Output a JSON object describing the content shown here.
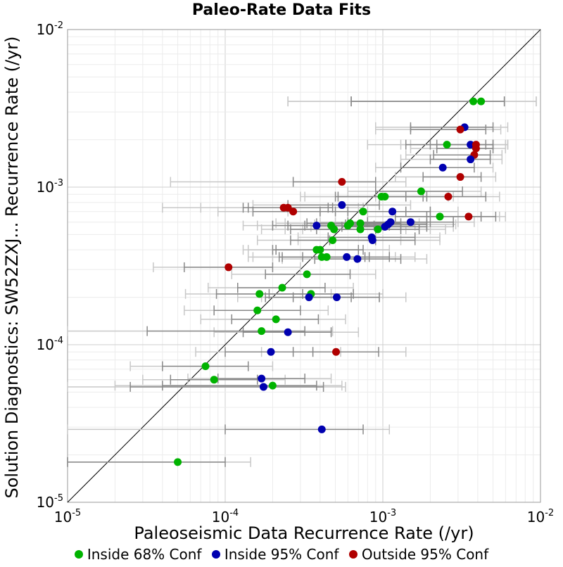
{
  "chart_data": {
    "type": "scatter",
    "title": "Paleo-Rate Data Fits",
    "xlabel": "Paleoseismic Data Recurrence Rate (/yr)",
    "ylabel": "Solution Diagnostics: SW52ZXJ... Recurrence Rate (/yr)",
    "xscale": "log",
    "yscale": "log",
    "xlim": [
      1e-05,
      0.01
    ],
    "ylim": [
      1e-05,
      0.01
    ],
    "x_ticks": [
      "10^-5",
      "10^-4",
      "10^-3",
      "10^-2"
    ],
    "y_ticks": [
      "10^-5",
      "10^-4",
      "10^-3",
      "10^-2"
    ],
    "grid": true,
    "reference_line": "y = x",
    "legend_position": "bottom",
    "legend": [
      {
        "label": "Inside 68% Conf",
        "color": "#00b300"
      },
      {
        "label": "Inside 95% Conf",
        "color": "#0000b0"
      },
      {
        "label": "Outside 95% Conf",
        "color": "#b00000"
      }
    ],
    "error_bar_colors": {
      "68": "#888888",
      "95": "#c8c8c8"
    },
    "points": [
      {
        "cat": 0,
        "x": 0.00375,
        "y": 0.0035,
        "e68": [
          0.00063,
          0.0059
        ],
        "e95": [
          0.00025,
          0.0094
        ]
      },
      {
        "cat": 0,
        "x": 0.0042,
        "y": 0.0035,
        "e68": [
          0.00063,
          0.0059
        ],
        "e95": [
          0.00025,
          0.0094
        ]
      },
      {
        "cat": 1,
        "x": 0.0033,
        "y": 0.0024,
        "e68": [
          0.0015,
          0.005
        ],
        "e95": [
          0.0009,
          0.0062
        ]
      },
      {
        "cat": 2,
        "x": 0.0031,
        "y": 0.00232,
        "e68": [
          0.0015,
          0.0045
        ],
        "e95": [
          0.0009,
          0.0056
        ]
      },
      {
        "cat": 0,
        "x": 0.00255,
        "y": 0.00186,
        "e68": [
          0.0014,
          0.0045
        ],
        "e95": [
          0.0008,
          0.0062
        ]
      },
      {
        "cat": 1,
        "x": 0.0036,
        "y": 0.00186,
        "e68": [
          0.002,
          0.005
        ],
        "e95": [
          0.0013,
          0.0062
        ]
      },
      {
        "cat": 2,
        "x": 0.0039,
        "y": 0.00186,
        "e68": [
          0.0022,
          0.005
        ],
        "e95": [
          0.0015,
          0.006
        ]
      },
      {
        "cat": 2,
        "x": 0.0039,
        "y": 0.00176,
        "e68": [
          0.0022,
          0.005
        ],
        "e95": [
          0.0015,
          0.006
        ]
      },
      {
        "cat": 2,
        "x": 0.0038,
        "y": 0.0016,
        "e68": [
          0.0021,
          0.0048
        ],
        "e95": [
          0.0014,
          0.0057
        ]
      },
      {
        "cat": 1,
        "x": 0.0036,
        "y": 0.0015,
        "e68": [
          0.002,
          0.0048
        ],
        "e95": [
          0.0013,
          0.0057
        ]
      },
      {
        "cat": 1,
        "x": 0.0024,
        "y": 0.00133,
        "e68": [
          0.0013,
          0.0038
        ],
        "e95": [
          0.0009,
          0.005
        ]
      },
      {
        "cat": 2,
        "x": 0.0031,
        "y": 0.00116,
        "e68": [
          0.0018,
          0.0042
        ],
        "e95": [
          0.0012,
          0.0052
        ]
      },
      {
        "cat": 2,
        "x": 0.00055,
        "y": 0.00108,
        "e68": [
          0.00027,
          0.0009
        ],
        "e95": [
          4.5e-05,
          0.0014
        ]
      },
      {
        "cat": 0,
        "x": 0.00175,
        "y": 0.00094,
        "e68": [
          0.0009,
          0.0032
        ],
        "e95": [
          0.0006,
          0.0042
        ]
      },
      {
        "cat": 0,
        "x": 0.00098,
        "y": 0.00087,
        "e68": [
          0.0005,
          0.0018
        ],
        "e95": [
          0.0003,
          0.0026
        ]
      },
      {
        "cat": 0,
        "x": 0.00103,
        "y": 0.00087,
        "e68": [
          0.00052,
          0.0019
        ],
        "e95": [
          0.00032,
          0.0028
        ]
      },
      {
        "cat": 2,
        "x": 0.0026,
        "y": 0.00087,
        "e68": [
          0.0014,
          0.0045
        ],
        "e95": [
          0.0009,
          0.0055
        ]
      },
      {
        "cat": 1,
        "x": 0.00055,
        "y": 0.00077,
        "e68": [
          0.00025,
          0.00095
        ],
        "e95": [
          0.00015,
          0.0015
        ]
      },
      {
        "cat": 2,
        "x": 0.000235,
        "y": 0.00074,
        "e68": [
          0.00013,
          0.00045
        ],
        "e95": [
          4e-05,
          0.0007
        ]
      },
      {
        "cat": 2,
        "x": 0.00025,
        "y": 0.00074,
        "e68": [
          0.00014,
          0.00048
        ],
        "e95": [
          7e-05,
          0.00075
        ]
      },
      {
        "cat": 2,
        "x": 0.00027,
        "y": 0.0007,
        "e68": [
          0.00015,
          0.0005
        ],
        "e95": [
          9e-05,
          0.0008
        ]
      },
      {
        "cat": 0,
        "x": 0.00075,
        "y": 0.0007,
        "e68": [
          0.0004,
          0.0014
        ],
        "e95": [
          0.00025,
          0.002
        ]
      },
      {
        "cat": 1,
        "x": 0.00115,
        "y": 0.0007,
        "e68": [
          0.0006,
          0.002
        ],
        "e95": [
          0.0004,
          0.003
        ]
      },
      {
        "cat": 0,
        "x": 0.0023,
        "y": 0.00065,
        "e68": [
          0.0012,
          0.0042
        ],
        "e95": [
          0.0008,
          0.0055
        ]
      },
      {
        "cat": 2,
        "x": 0.0035,
        "y": 0.00065,
        "e68": [
          0.0019,
          0.0052
        ],
        "e95": [
          0.0012,
          0.006
        ]
      },
      {
        "cat": 1,
        "x": 0.0015,
        "y": 0.0006,
        "e68": [
          0.0008,
          0.0028
        ],
        "e95": [
          0.0005,
          0.0038
        ]
      },
      {
        "cat": 1,
        "x": 0.00112,
        "y": 0.0006,
        "e68": [
          0.0006,
          0.002
        ],
        "e95": [
          0.0004,
          0.003
        ]
      },
      {
        "cat": 0,
        "x": 0.00072,
        "y": 0.00059,
        "e68": [
          0.00038,
          0.0013
        ],
        "e95": [
          0.00024,
          0.0019
        ]
      },
      {
        "cat": 0,
        "x": 0.00062,
        "y": 0.00059,
        "e68": [
          0.00033,
          0.0011
        ],
        "e95": [
          0.00021,
          0.0017
        ]
      },
      {
        "cat": 1,
        "x": 0.00108,
        "y": 0.00058,
        "e68": [
          0.00058,
          0.0019
        ],
        "e95": [
          0.00037,
          0.0029
        ]
      },
      {
        "cat": 1,
        "x": 0.00038,
        "y": 0.00057,
        "e68": [
          0.0002,
          0.0007
        ],
        "e95": [
          0.00013,
          0.0011
        ]
      },
      {
        "cat": 0,
        "x": 0.00047,
        "y": 0.00057,
        "e68": [
          0.00025,
          0.00088
        ],
        "e95": [
          0.00016,
          0.0013
        ]
      },
      {
        "cat": 0,
        "x": 0.0006,
        "y": 0.00057,
        "e68": [
          0.00032,
          0.0011
        ],
        "e95": [
          0.0002,
          0.0016
        ]
      },
      {
        "cat": 1,
        "x": 0.00103,
        "y": 0.00056,
        "e68": [
          0.00055,
          0.0019
        ],
        "e95": [
          0.00035,
          0.0028
        ]
      },
      {
        "cat": 0,
        "x": 0.00049,
        "y": 0.00054,
        "e68": [
          0.00026,
          0.0009
        ],
        "e95": [
          0.00017,
          0.0014
        ]
      },
      {
        "cat": 0,
        "x": 0.00072,
        "y": 0.00054,
        "e68": [
          0.00038,
          0.0013
        ],
        "e95": [
          0.00024,
          0.002
        ]
      },
      {
        "cat": 0,
        "x": 0.00093,
        "y": 0.00054,
        "e68": [
          0.0005,
          0.0017
        ],
        "e95": [
          0.00031,
          0.0025
        ]
      },
      {
        "cat": 1,
        "x": 0.00085,
        "y": 0.00048,
        "e68": [
          0.00045,
          0.0016
        ],
        "e95": [
          0.00029,
          0.0023
        ]
      },
      {
        "cat": 0,
        "x": 0.00048,
        "y": 0.00046,
        "e68": [
          0.00026,
          0.0009
        ],
        "e95": [
          0.00016,
          0.0013
        ]
      },
      {
        "cat": 1,
        "x": 0.00086,
        "y": 0.00046,
        "e68": [
          0.00046,
          0.0016
        ],
        "e95": [
          0.00029,
          0.0023
        ]
      },
      {
        "cat": 0,
        "x": 0.00038,
        "y": 0.0004,
        "e68": [
          0.0002,
          0.0007
        ],
        "e95": [
          0.00013,
          0.0011
        ]
      },
      {
        "cat": 0,
        "x": 0.0004,
        "y": 0.0004,
        "e68": [
          0.00021,
          0.00075
        ],
        "e95": [
          0.00014,
          0.0011
        ]
      },
      {
        "cat": 0,
        "x": 0.00041,
        "y": 0.00036,
        "e68": [
          0.00022,
          0.00077
        ],
        "e95": [
          0.00014,
          0.0011
        ]
      },
      {
        "cat": 0,
        "x": 0.00044,
        "y": 0.00036,
        "e68": [
          0.00023,
          0.00082
        ],
        "e95": [
          0.00015,
          0.0012
        ]
      },
      {
        "cat": 1,
        "x": 0.00059,
        "y": 0.00036,
        "e68": [
          0.00031,
          0.0011
        ],
        "e95": [
          0.0002,
          0.0016
        ]
      },
      {
        "cat": 1,
        "x": 0.00069,
        "y": 0.00035,
        "e68": [
          0.00037,
          0.0013
        ],
        "e95": [
          0.00023,
          0.0019
        ]
      },
      {
        "cat": 2,
        "x": 0.000105,
        "y": 0.00031,
        "e68": [
          5.5e-05,
          0.0002
        ],
        "e95": [
          3.5e-05,
          0.0003
        ]
      },
      {
        "cat": 0,
        "x": 0.00033,
        "y": 0.00028,
        "e68": [
          0.00018,
          0.00062
        ],
        "e95": [
          0.00011,
          0.0009
        ]
      },
      {
        "cat": 0,
        "x": 0.00023,
        "y": 0.00023,
        "e68": [
          0.00012,
          0.00043
        ],
        "e95": [
          7.8e-05,
          0.00065
        ]
      },
      {
        "cat": 0,
        "x": 0.000165,
        "y": 0.00021,
        "e68": [
          8.8e-05,
          0.00031
        ],
        "e95": [
          5.6e-05,
          0.00047
        ]
      },
      {
        "cat": 0,
        "x": 0.00035,
        "y": 0.00021,
        "e68": [
          0.00019,
          0.00065
        ],
        "e95": [
          0.00012,
          0.001
        ]
      },
      {
        "cat": 1,
        "x": 0.00034,
        "y": 0.0002,
        "e68": [
          0.00018,
          0.00063
        ],
        "e95": [
          0.00012,
          0.00095
        ]
      },
      {
        "cat": 1,
        "x": 0.00051,
        "y": 0.0002,
        "e68": [
          0.00027,
          0.00095
        ],
        "e95": [
          0.00017,
          0.0014
        ]
      },
      {
        "cat": 0,
        "x": 0.00016,
        "y": 0.000165,
        "e68": [
          8.5e-05,
          0.0003
        ],
        "e95": [
          5.5e-05,
          0.00045
        ]
      },
      {
        "cat": 0,
        "x": 0.00021,
        "y": 0.000145,
        "e68": [
          0.00011,
          0.00039
        ],
        "e95": [
          7e-05,
          0.00058
        ]
      },
      {
        "cat": 0,
        "x": 0.00017,
        "y": 0.000122,
        "e68": [
          3.2e-05,
          0.00032
        ],
        "e95": [
          1e-05,
          0.00048
        ]
      },
      {
        "cat": 1,
        "x": 0.00025,
        "y": 0.00012,
        "e68": [
          0.00013,
          0.00047
        ],
        "e95": [
          8.5e-05,
          0.0007
        ]
      },
      {
        "cat": 1,
        "x": 0.000195,
        "y": 9e-05,
        "e68": [
          0.0001,
          0.00036
        ],
        "e95": [
          6.5e-05,
          0.00054
        ]
      },
      {
        "cat": 2,
        "x": 0.000505,
        "y": 9e-05,
        "e68": [
          0.00027,
          0.00094
        ],
        "e95": [
          0.00017,
          0.0014
        ]
      },
      {
        "cat": 0,
        "x": 7.5e-05,
        "y": 7.3e-05,
        "e68": [
          4e-05,
          0.00014
        ],
        "e95": [
          2.5e-05,
          0.0002
        ]
      },
      {
        "cat": 1,
        "x": 0.00017,
        "y": 6.1e-05,
        "e68": [
          9e-05,
          0.00032
        ],
        "e95": [
          5.8e-05,
          0.00047
        ]
      },
      {
        "cat": 0,
        "x": 8.5e-05,
        "y": 6e-05,
        "e68": [
          4.5e-05,
          0.00016
        ],
        "e95": [
          3e-05,
          0.00024
        ]
      },
      {
        "cat": 1,
        "x": 0.000175,
        "y": 5.4e-05,
        "e68": [
          2.5e-05,
          0.00042
        ],
        "e95": [
          1e-05,
          0.00058
        ]
      },
      {
        "cat": 0,
        "x": 0.0002,
        "y": 5.5e-05,
        "e68": [
          4e-05,
          0.00038
        ],
        "e95": [
          2e-05,
          0.00055
        ]
      },
      {
        "cat": 1,
        "x": 0.00041,
        "y": 2.9e-05,
        "e68": [
          0.0001,
          0.00075
        ],
        "e95": [
          1e-05,
          0.0011
        ]
      },
      {
        "cat": 0,
        "x": 5e-05,
        "y": 1.8e-05,
        "e68": [
          1e-05,
          0.0001
        ],
        "e95": [
          1e-05,
          0.000145
        ]
      }
    ]
  }
}
